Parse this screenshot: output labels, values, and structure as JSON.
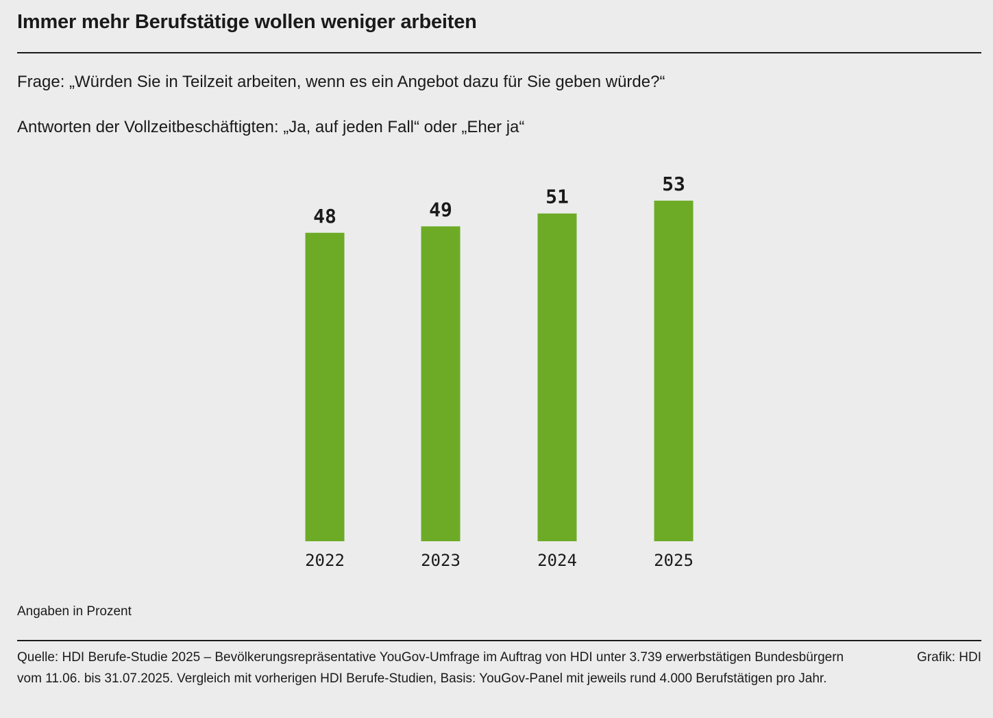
{
  "header": {
    "title": "Immer mehr Berufstätige wollen weniger arbeiten",
    "question": "Frage: „Würden Sie in Teilzeit arbeiten, wenn es ein Angebot dazu für Sie geben würde?“",
    "answers": "Antworten der Vollzeitbeschäftigten: „Ja, auf jeden Fall“ oder „Eher ja“"
  },
  "chart_data": {
    "type": "bar",
    "categories": [
      "2022",
      "2023",
      "2024",
      "2025"
    ],
    "values": [
      48,
      49,
      51,
      53
    ],
    "title": "",
    "xlabel": "",
    "ylabel": "",
    "ylim": [
      0,
      100
    ],
    "grid": false,
    "bar_color": "#6dab27",
    "unit_note": "Angaben in Prozent"
  },
  "footer": {
    "source": "Quelle: HDI Berufe-Studie 2025 – Bevölkerungsrepräsentative YouGov-Umfrage im Auftrag von HDI unter 3.739 erwerbstätigen Bundesbürgern vom 11.06. bis 31.07.2025. Vergleich mit vorherigen HDI Berufe-Studien, Basis: YouGov-Panel mit jeweils rund 4.000 Berufstätigen pro Jahr.",
    "credit": "Grafik: HDI"
  }
}
